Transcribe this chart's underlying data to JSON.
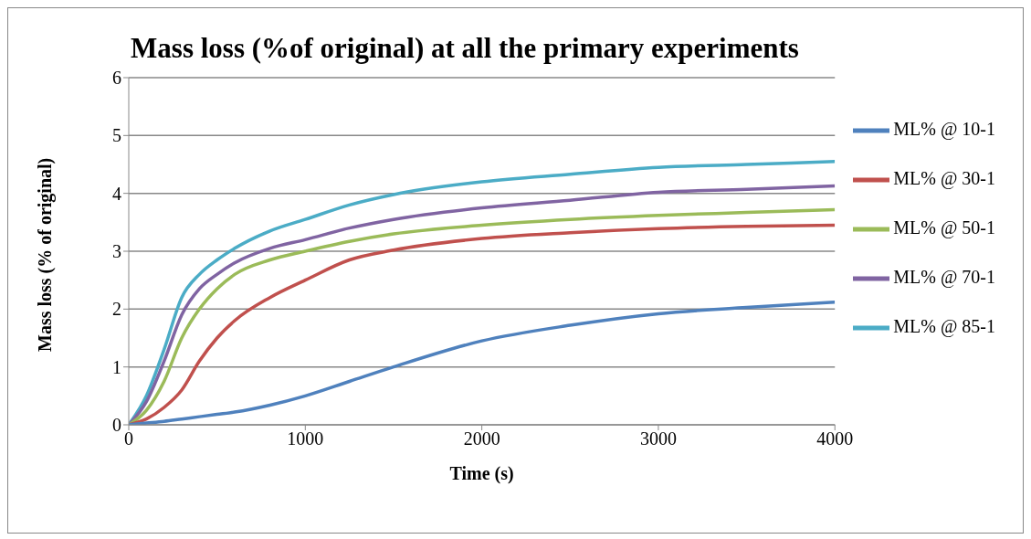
{
  "chart_data": {
    "type": "line",
    "title": "Mass loss (%of original) at all the primary experiments",
    "xlabel": "Time (s)",
    "ylabel": "Mass loss (% of original)",
    "x": [
      0,
      100,
      200,
      300,
      400,
      500,
      600,
      800,
      1000,
      1250,
      1500,
      2000,
      2500,
      3000,
      3500,
      4000
    ],
    "series": [
      {
        "name": "ML% @ 85-1",
        "color": "#4bacc6",
        "values": [
          0,
          0.5,
          1.3,
          2.2,
          2.6,
          2.85,
          3.05,
          3.35,
          3.55,
          3.8,
          3.98,
          4.2,
          4.33,
          4.45,
          4.5,
          4.55
        ]
      },
      {
        "name": "ML% @ 70-1",
        "color": "#8064a2",
        "values": [
          0,
          0.4,
          1.1,
          1.9,
          2.35,
          2.6,
          2.8,
          3.05,
          3.2,
          3.4,
          3.55,
          3.75,
          3.88,
          4.02,
          4.07,
          4.13
        ]
      },
      {
        "name": "ML% @ 50-1",
        "color": "#9bbb59",
        "values": [
          0,
          0.25,
          0.75,
          1.5,
          2.0,
          2.35,
          2.6,
          2.85,
          3.0,
          3.17,
          3.3,
          3.45,
          3.55,
          3.62,
          3.67,
          3.72
        ]
      },
      {
        "name": "ML% @ 30-1",
        "color": "#c0504d",
        "values": [
          0,
          0.1,
          0.3,
          0.6,
          1.1,
          1.5,
          1.8,
          2.2,
          2.5,
          2.85,
          3.02,
          3.22,
          3.32,
          3.39,
          3.43,
          3.45
        ]
      },
      {
        "name": "ML% @ 10-1",
        "color": "#4f81bd",
        "values": [
          0,
          0.03,
          0.06,
          0.1,
          0.14,
          0.18,
          0.22,
          0.34,
          0.5,
          0.75,
          1.0,
          1.45,
          1.72,
          1.92,
          2.03,
          2.12
        ]
      }
    ],
    "xlim": [
      0,
      4000
    ],
    "xticks": [
      0,
      1000,
      2000,
      3000,
      4000
    ],
    "ylim": [
      0,
      6
    ],
    "yticks": [
      0,
      1,
      2,
      3,
      4,
      5,
      6
    ],
    "grid": "y",
    "legend": "right",
    "marker": "none",
    "line_style": "solid"
  }
}
